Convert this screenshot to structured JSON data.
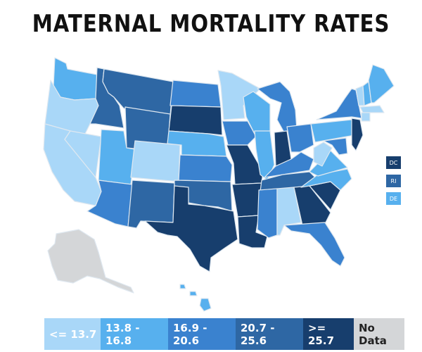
{
  "title": "MATERNAL MORTALITY RATES",
  "colors": {
    "bin1": "#a9d7f8",
    "bin2": "#57b0ee",
    "bin3": "#3a82cf",
    "bin4": "#2e67a4",
    "bin5": "#173e6d",
    "nodata": "#d4d6d8"
  },
  "small_states": [
    {
      "label": "DC",
      "bin": "bin5"
    },
    {
      "label": "RI",
      "bin": "bin4"
    },
    {
      "label": "DE",
      "bin": "bin2"
    }
  ],
  "legend": [
    {
      "label": "<= 13.7",
      "bin": "bin1"
    },
    {
      "label": "13.8 - 16.8",
      "bin": "bin2"
    },
    {
      "label": "16.9 - 20.6",
      "bin": "bin3"
    },
    {
      "label": "20.7 - 25.6",
      "bin": "bin4"
    },
    {
      "label": ">= 25.7",
      "bin": "bin5"
    },
    {
      "label": "No Data",
      "bin": "nodata"
    }
  ],
  "states": {
    "WA": "bin2",
    "OR": "bin1",
    "CA": "bin1",
    "NV": "bin1",
    "ID": "bin4",
    "MT": "bin4",
    "WY": "bin4",
    "UT": "bin2",
    "CO": "bin1",
    "AZ": "bin3",
    "NM": "bin4",
    "ND": "bin3",
    "SD": "bin5",
    "NE": "bin2",
    "KS": "bin3",
    "OK": "bin4",
    "TX": "bin5",
    "MN": "bin1",
    "IA": "bin3",
    "MO": "bin5",
    "AR": "bin5",
    "LA": "bin5",
    "WI": "bin2",
    "IL": "bin2",
    "MI": "bin3",
    "IN": "bin5",
    "OH": "bin3",
    "KY": "bin3",
    "TN": "bin4",
    "MS": "bin3",
    "AL": "bin1",
    "GA": "bin5",
    "FL": "bin3",
    "SC": "bin5",
    "NC": "bin2",
    "VA": "bin2",
    "WV": "bin1",
    "PA": "bin2",
    "NY": "bin3",
    "VT": "bin1",
    "NH": "bin2",
    "ME": "bin2",
    "MA": "bin1",
    "CT": "bin1",
    "NJ": "bin5",
    "MD": "bin3",
    "AK": "nodata",
    "HI": "bin2"
  }
}
